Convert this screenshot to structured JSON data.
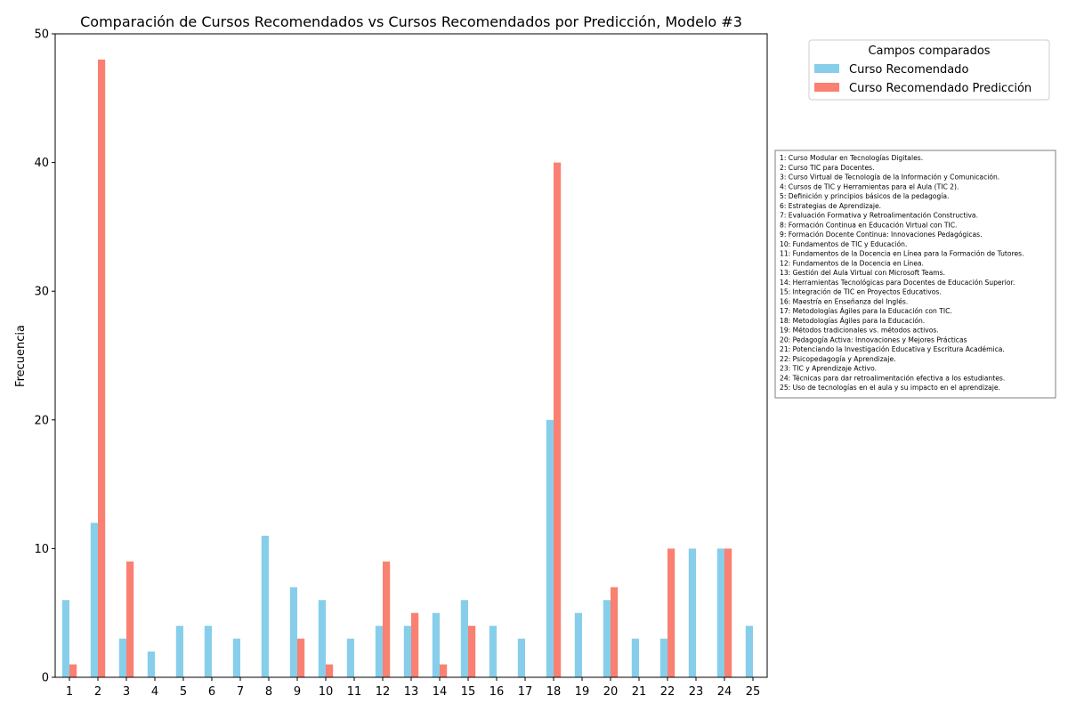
{
  "chart_data": {
    "type": "bar",
    "title": "Comparación de Cursos Recomendados vs Cursos Recomendados por Predicción, Modelo #3",
    "xlabel": "",
    "ylabel": "Frecuencia",
    "ylim": [
      0,
      50
    ],
    "yticks": [
      "0",
      "10",
      "20",
      "30",
      "40",
      "50"
    ],
    "categories": [
      "1",
      "2",
      "3",
      "4",
      "5",
      "6",
      "7",
      "8",
      "9",
      "10",
      "11",
      "12",
      "13",
      "14",
      "15",
      "16",
      "17",
      "18",
      "19",
      "20",
      "21",
      "22",
      "23",
      "24",
      "25"
    ],
    "series": [
      {
        "name": "Curso Recomendado",
        "color": "#87ceeb",
        "values": [
          6,
          12,
          3,
          2,
          4,
          4,
          3,
          11,
          7,
          6,
          3,
          4,
          4,
          5,
          6,
          4,
          3,
          20,
          5,
          6,
          3,
          3,
          10,
          10,
          4
        ]
      },
      {
        "name": "Curso Recomendado Predicción",
        "color": "#fa8072",
        "values": [
          1,
          48,
          9,
          0,
          0,
          0,
          0,
          0,
          3,
          1,
          0,
          9,
          5,
          1,
          4,
          0,
          0,
          40,
          0,
          7,
          0,
          10,
          0,
          10,
          0
        ]
      }
    ],
    "legend_title": "Campos comparados",
    "legend_position": "top-right, outside",
    "grid": false,
    "course_key": [
      "1: Curso Modular en Tecnologías Digitales.",
      "2: Curso TIC para Docentes.",
      "3: Curso Virtual de Tecnología de la Información y Comunicación.",
      "4: Cursos de TIC y Herramientas para el Aula (TIC 2).",
      "5: Definición y principios básicos de la pedagogía.",
      "6: Estrategias de Aprendizaje.",
      "7: Evaluación Formativa y Retroalimentación Constructiva.",
      "8: Formación Continua en Educación Virtual con TIC.",
      "9: Formación Docente Continua: Innovaciones Pedagógicas.",
      "10: Fundamentos de TIC y Educación.",
      "11: Fundamentos de la Docencia en Línea para la Formación de Tutores.",
      "12: Fundamentos de la Docencia en Línea.",
      "13: Gestión del Aula Virtual con Microsoft Teams.",
      "14: Herramientas Tecnológicas para Docentes de Educación Superior.",
      "15: Integración de TIC en Proyectos Educativos.",
      "16: Maestría en Enseñanza del Inglés.",
      "17: Metodologías Ágiles para la Educación con TIC.",
      "18: Metodologías Ágiles para la Educación.",
      "19: Métodos tradicionales vs. métodos activos.",
      "20: Pedagogía Activa: Innovaciones y Mejores Prácticas",
      "21: Potenciando la Investigación Educativa y Escritura Académica.",
      "22: Psicopedagogía y Aprendizaje.",
      "23: TIC y Aprendizaje Activo.",
      "24: Técnicas para dar retroalimentación efectiva a los estudiantes.",
      "25: Uso de tecnologías en el aula y su impacto en el aprendizaje."
    ]
  }
}
